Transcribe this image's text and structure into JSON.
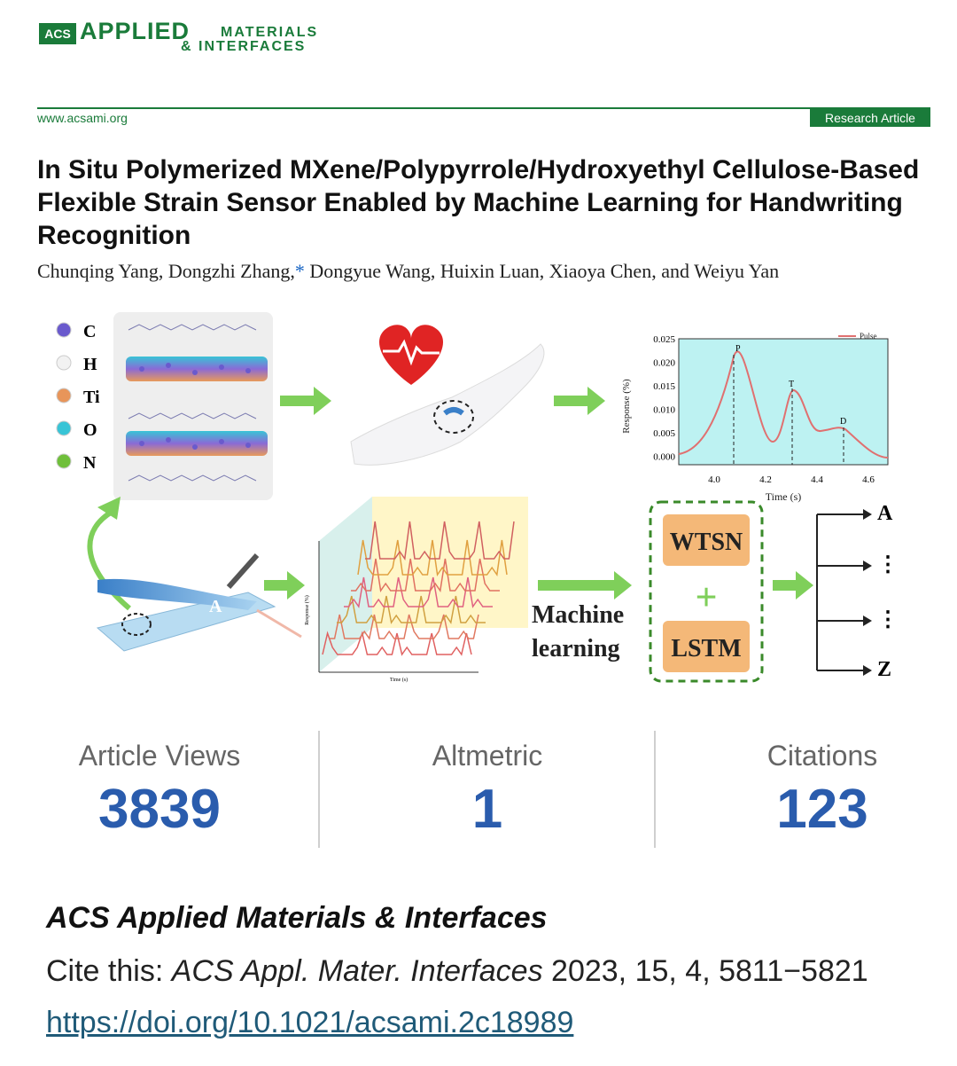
{
  "header": {
    "logo_acs": "ACS",
    "logo_applied": "APPLIED",
    "logo_materials": "MATERIALS",
    "logo_interfaces": "& INTERFACES",
    "site": "www.acsami.org",
    "badge": "Research Article"
  },
  "article": {
    "title": "In Situ Polymerized MXene/Polypyrrole/Hydroxyethyl Cellulose-Based Flexible Strain Sensor Enabled by Machine Learning for Handwriting Recognition",
    "authors": "Chunqing Yang, Dongzhi Zhang,",
    "authors_star": "*",
    "authors_rest": " Dongyue Wang, Huixin Luan, Xiaoya Chen, and Weiyu Yan"
  },
  "figure": {
    "elements": [
      "C",
      "H",
      "Ti",
      "O",
      "N"
    ],
    "element_colors": [
      "#6a5acd",
      "#f2f2f2",
      "#e8955a",
      "#38c4d6",
      "#6fbf3a"
    ],
    "pulse_chart": {
      "legend": "Pulse",
      "ylabel": "Response (%)",
      "xlabel": "Time (s)",
      "yticks": [
        "0.025",
        "0.020",
        "0.015",
        "0.010",
        "0.005",
        "0.000"
      ],
      "xticks": [
        "4.0",
        "4.2",
        "4.4",
        "4.6"
      ],
      "peaks": [
        "P",
        "T",
        "D"
      ]
    },
    "waterfall": {
      "ylabel": "Response (%)",
      "xlabel": "Time (s)"
    },
    "machine_learning": "Machine learning",
    "ml_line1": "Machine",
    "ml_line2": "learning",
    "wtsn": "WTSN",
    "plus": "+",
    "lstm": "LSTM",
    "outputs": [
      "A",
      "⋮",
      "⋮",
      "Z"
    ]
  },
  "metrics": [
    {
      "label": "Article Views",
      "value": "3839"
    },
    {
      "label": "Altmetric",
      "value": "1"
    },
    {
      "label": "Citations",
      "value": "123"
    }
  ],
  "citation": {
    "journal": "ACS Applied Materials & Interfaces",
    "prefix": "Cite this: ",
    "journal_abbrev": "ACS Appl. Mater. Interfaces",
    "details": " 2023, 15, 4, 5811−5821",
    "doi": "https://doi.org/10.1021/acsami.2c18989"
  }
}
